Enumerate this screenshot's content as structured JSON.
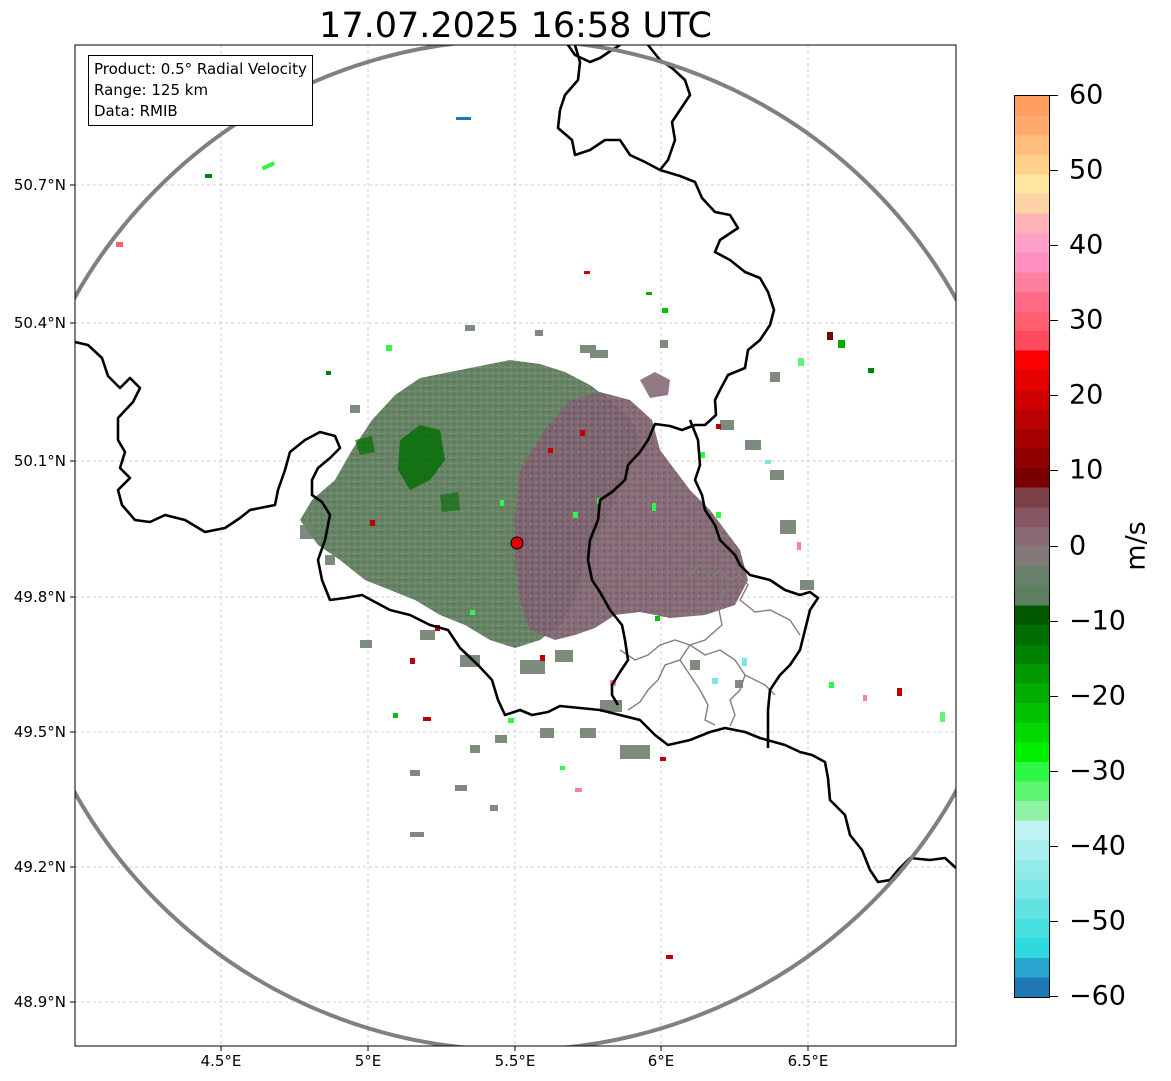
{
  "title": "17.07.2025 16:58 UTC",
  "info": {
    "product": "Product: 0.5° Radial Velocity",
    "range": "Range: 125 km",
    "source": "Data: RMIB"
  },
  "x_ticks": [
    "4.5°E",
    "5°E",
    "5.5°E",
    "6°E",
    "6.5°E"
  ],
  "y_ticks": [
    "50.7°N",
    "50.4°N",
    "50.1°N",
    "49.8°N",
    "49.5°N",
    "49.2°N",
    "48.9°N"
  ],
  "colorbar": {
    "label": "m/s",
    "ticks": [
      "60",
      "50",
      "40",
      "30",
      "20",
      "10",
      "0",
      "−10",
      "−20",
      "−30",
      "−40",
      "−50",
      "−60"
    ],
    "min": -60,
    "max": 60,
    "colors": [
      "#1f78b4",
      "#29a6d0",
      "#2ed9df",
      "#48dfe0",
      "#62e3e3",
      "#7ae6e6",
      "#93eaea",
      "#abeeee",
      "#bff2f2",
      "#8ef2a6",
      "#5ef573",
      "#2ef846",
      "#00f000",
      "#00d800",
      "#00c200",
      "#00ad00",
      "#009700",
      "#008200",
      "#006d00",
      "#005900",
      "#5e8060",
      "#6a7f6b",
      "#827978",
      "#8a6a75",
      "#865662",
      "#7c4048",
      "#7a0000",
      "#8f0000",
      "#a50000",
      "#bb0000",
      "#d00000",
      "#e60000",
      "#fb0000",
      "#ff4b5c",
      "#ff5e6e",
      "#ff6b86",
      "#ff7fa0",
      "#ff8fc0",
      "#ffa0c8",
      "#ffb3b8",
      "#ffd3a8",
      "#ffe7a0",
      "#ffd08a",
      "#ffbc7a",
      "#ffaa6c",
      "#ff9c5e"
    ]
  },
  "colors": {
    "ring": "#808080",
    "border": "#000000",
    "province_border": "#7f7f7f",
    "radar_site": "#e00000",
    "echo_main": "#5f7c5e",
    "echo_pos": "#806070",
    "echo_dark_green": "#006d00"
  }
}
